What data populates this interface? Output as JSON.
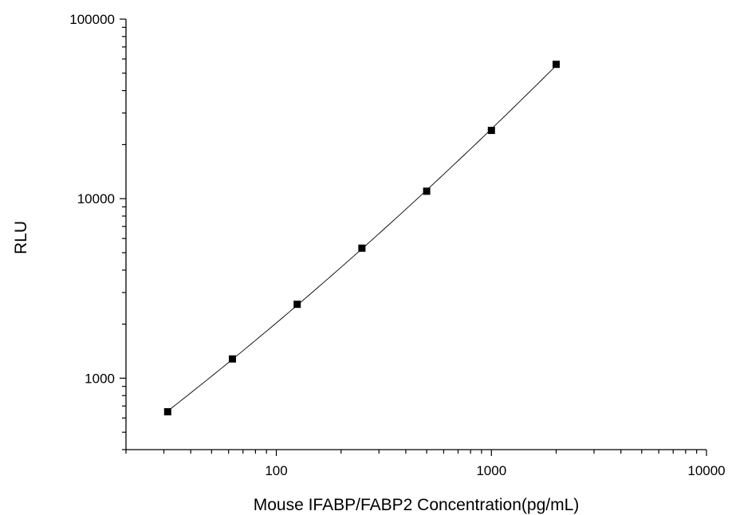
{
  "chart_data": {
    "type": "scatter",
    "xlabel": "Mouse IFABP/FABP2 Concentration(pg/mL)",
    "ylabel": "RLU",
    "xscale": "log",
    "yscale": "log",
    "xlim": [
      20,
      10000
    ],
    "ylim": [
      400,
      100000
    ],
    "xticks": [
      100,
      1000,
      10000
    ],
    "xtick_labels": [
      "100",
      "1000",
      "10000"
    ],
    "yticks": [
      1000,
      10000,
      100000
    ],
    "ytick_labels": [
      "1000",
      "10000",
      "100000"
    ],
    "grid": false,
    "legend": "none",
    "series": [
      {
        "marker": "square",
        "line": "fitted curve",
        "color": "#000000",
        "x": [
          31.25,
          62.5,
          125,
          250,
          500,
          1000,
          2000
        ],
        "y": [
          650,
          1280,
          2580,
          5300,
          11000,
          24000,
          56000
        ]
      }
    ]
  }
}
